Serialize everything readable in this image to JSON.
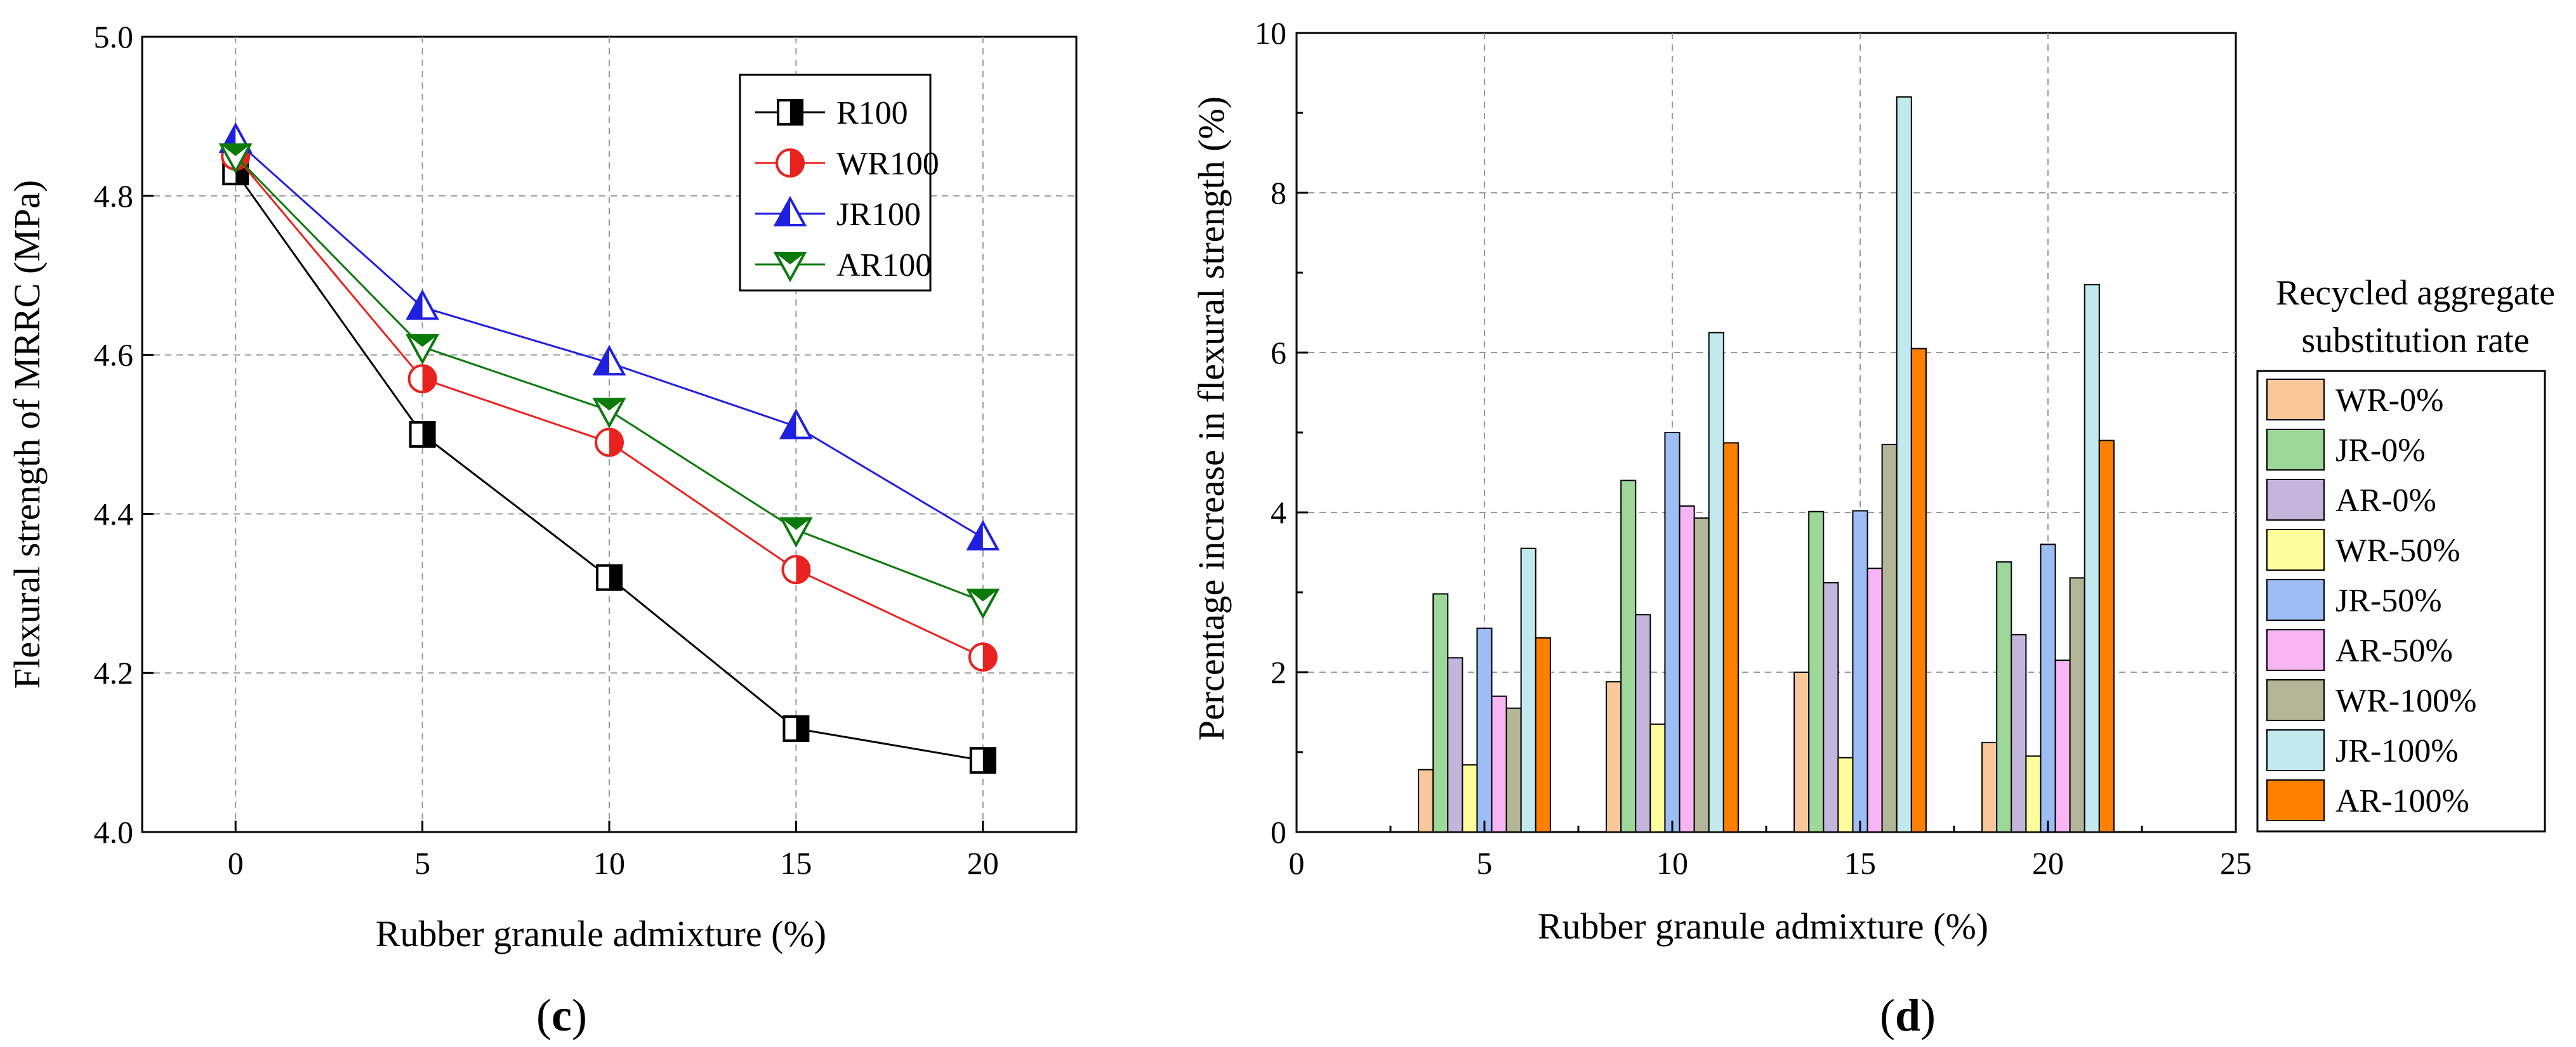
{
  "chart_data": [
    {
      "type": "line",
      "panel": "c",
      "title": "",
      "xlabel": "Rubber granule admixture (%)",
      "ylabel": "Flexural strength of MRRC (MPa)",
      "xlim": [
        -2.5,
        22.5
      ],
      "ylim": [
        4.0,
        5.0
      ],
      "xticks": [
        0,
        5,
        10,
        15,
        20
      ],
      "yticks": [
        4.0,
        4.2,
        4.4,
        4.6,
        4.8,
        5.0
      ],
      "grid": true,
      "legend_position": "top-right",
      "x": [
        0,
        5,
        10,
        15,
        20
      ],
      "series": [
        {
          "name": "R100",
          "color": "#000000",
          "marker": "square",
          "values": [
            4.83,
            4.5,
            4.32,
            4.13,
            4.09
          ]
        },
        {
          "name": "WR100",
          "color": "#e8231f",
          "marker": "circle",
          "values": [
            4.85,
            4.57,
            4.49,
            4.33,
            4.22
          ]
        },
        {
          "name": "JR100",
          "color": "#1f1fe0",
          "marker": "triangle-up",
          "values": [
            4.87,
            4.66,
            4.59,
            4.51,
            4.37
          ]
        },
        {
          "name": "AR100",
          "color": "#0a7a0a",
          "marker": "triangle-down",
          "values": [
            4.85,
            4.61,
            4.53,
            4.38,
            4.29
          ]
        }
      ]
    },
    {
      "type": "bar",
      "panel": "d",
      "title": "",
      "xlabel": "Rubber granule admixture (%)",
      "ylabel": "Percentage increase in flexural strength (%)",
      "xlim": [
        0,
        25
      ],
      "ylim": [
        0,
        10
      ],
      "xticks": [
        0,
        5,
        10,
        15,
        20,
        25
      ],
      "yticks": [
        0,
        2,
        4,
        6,
        8,
        10
      ],
      "grid": true,
      "legend_position": "outside-right",
      "legend_title_lines": [
        "Recycled aggregate",
        "substitution rate"
      ],
      "categories": [
        5,
        10,
        15,
        20
      ],
      "series": [
        {
          "name": "WR-0%",
          "color": "#f9c89a",
          "values": [
            0.78,
            1.88,
            2.0,
            1.12
          ]
        },
        {
          "name": "JR-0%",
          "color": "#9dd89a",
          "values": [
            2.98,
            4.4,
            4.01,
            3.38
          ]
        },
        {
          "name": "AR-0%",
          "color": "#c3b5dc",
          "values": [
            2.18,
            2.72,
            3.12,
            2.47
          ]
        },
        {
          "name": "WR-50%",
          "color": "#fdfd9d",
          "values": [
            0.84,
            1.35,
            0.93,
            0.95
          ]
        },
        {
          "name": "JR-50%",
          "color": "#9dbdf4",
          "values": [
            2.55,
            5.0,
            4.02,
            3.6
          ]
        },
        {
          "name": "AR-50%",
          "color": "#f8b5f4",
          "values": [
            1.7,
            4.08,
            3.3,
            2.15
          ]
        },
        {
          "name": "WR-100%",
          "color": "#b2b596",
          "values": [
            1.55,
            3.93,
            4.85,
            3.18
          ]
        },
        {
          "name": "JR-100%",
          "color": "#c2e9ee",
          "values": [
            3.55,
            6.25,
            9.2,
            6.85
          ]
        },
        {
          "name": "AR-100%",
          "color": "#ff8000",
          "values": [
            2.43,
            4.87,
            6.05,
            4.9
          ]
        }
      ]
    }
  ],
  "panel_labels": {
    "c": "(c)",
    "d": "(d)"
  },
  "panel_letters": {
    "c": "c",
    "d": "d"
  }
}
